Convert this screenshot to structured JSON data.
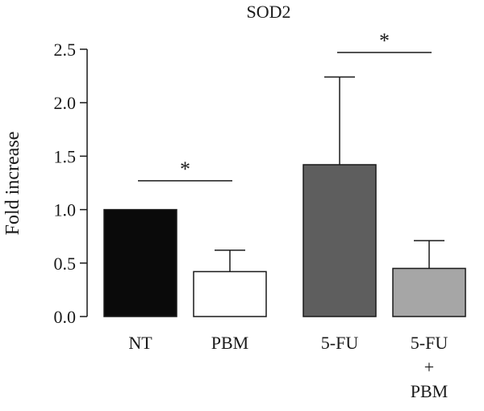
{
  "chart_data": {
    "type": "bar",
    "title": "SOD2",
    "xlabel": "",
    "ylabel": "Fold increase",
    "ylim": [
      0,
      2.5
    ],
    "yticks": [
      "0.0",
      "0.5",
      "1.0",
      "1.5",
      "2.0",
      "2.5"
    ],
    "grid": false,
    "categories": [
      {
        "lines": [
          "NT"
        ]
      },
      {
        "lines": [
          "PBM"
        ]
      },
      {
        "lines": [
          "5-FU"
        ]
      },
      {
        "lines": [
          "5-FU",
          "+",
          "PBM"
        ]
      }
    ],
    "values": [
      1.0,
      0.42,
      1.42,
      0.45
    ],
    "error_upper": [
      0.0,
      0.2,
      0.82,
      0.26
    ],
    "colors": [
      "#0a0a0a",
      "#ffffff",
      "#5e5e5e",
      "#a6a6a6"
    ],
    "significance": [
      {
        "from": 0,
        "to": 1,
        "y": 1.27,
        "label": "*"
      },
      {
        "from": 2,
        "to": 3,
        "y": 2.47,
        "label": "*"
      }
    ]
  }
}
